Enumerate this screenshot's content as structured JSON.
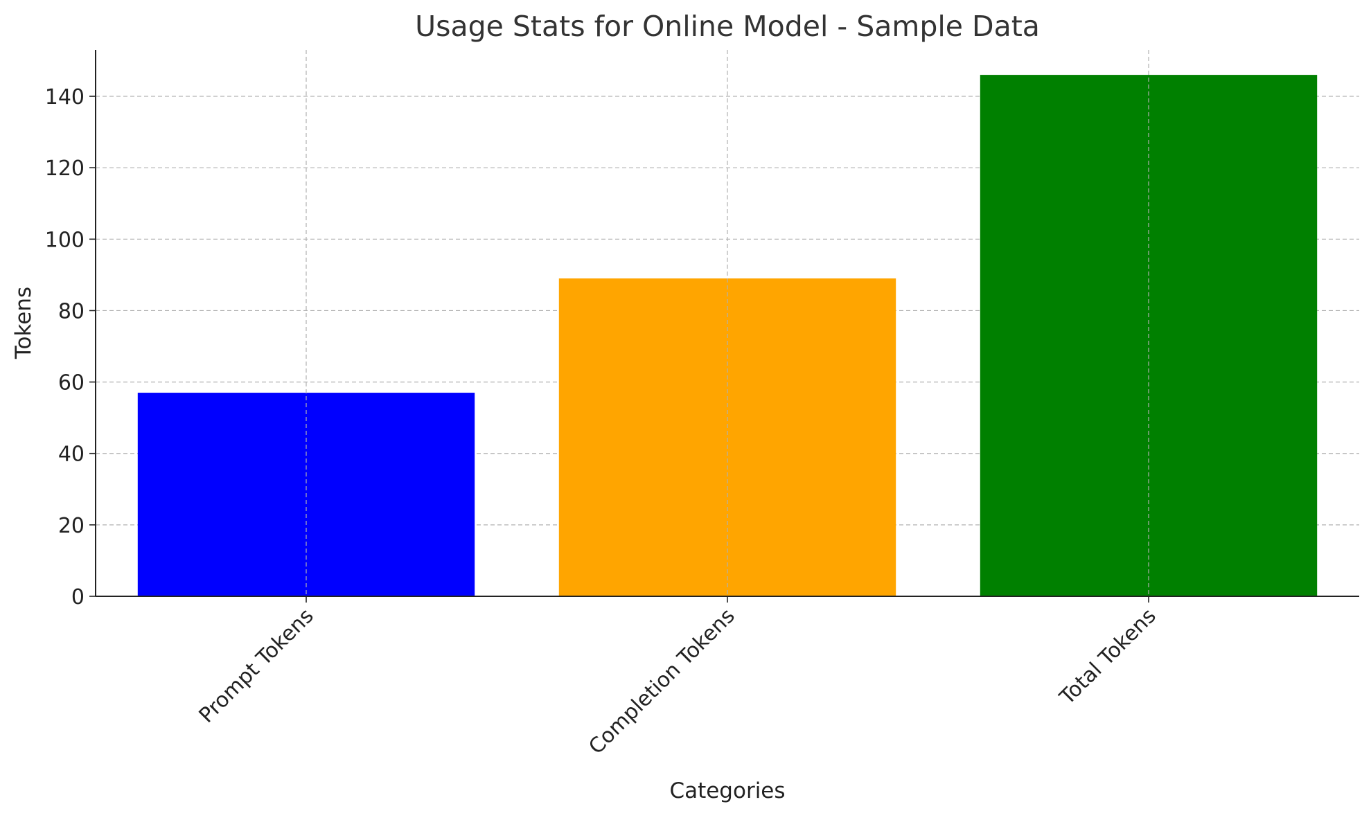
{
  "chart_data": {
    "type": "bar",
    "title": "Usage Stats for Online Model - Sample Data",
    "xlabel": "Categories",
    "ylabel": "Tokens",
    "categories": [
      "Prompt Tokens",
      "Completion Tokens",
      "Total Tokens"
    ],
    "values": [
      57,
      89,
      146
    ],
    "colors": [
      "#0000ff",
      "#ffa500",
      "#008000"
    ],
    "ylim": [
      0,
      153
    ],
    "yticks": [
      0,
      20,
      40,
      60,
      80,
      100,
      120,
      140
    ],
    "grid": true,
    "legend": "none"
  }
}
